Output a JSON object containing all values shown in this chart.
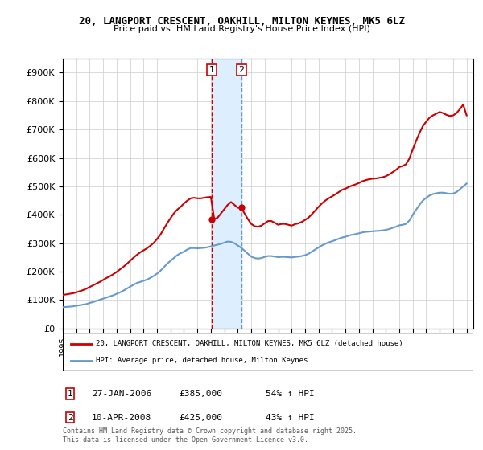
{
  "title": "20, LANGPORT CRESCENT, OAKHILL, MILTON KEYNES, MK5 6LZ",
  "subtitle": "Price paid vs. HM Land Registry's House Price Index (HPI)",
  "ylabel": "",
  "xlabel": "",
  "ylim": [
    0,
    950000
  ],
  "yticks": [
    0,
    100000,
    200000,
    300000,
    400000,
    500000,
    600000,
    700000,
    800000,
    900000
  ],
  "ytick_labels": [
    "£0",
    "£100K",
    "£200K",
    "£300K",
    "£400K",
    "£500K",
    "£600K",
    "£700K",
    "£800K",
    "£900K"
  ],
  "sale1_date_num": 2006.07,
  "sale2_date_num": 2008.27,
  "sale1_price": 385000,
  "sale2_price": 425000,
  "sale1_label": "27-JAN-2006",
  "sale2_label": "10-APR-2008",
  "sale1_hpi": "54% ↑ HPI",
  "sale2_hpi": "43% ↑ HPI",
  "red_color": "#cc0000",
  "blue_color": "#6699cc",
  "shade_color": "#ddeeff",
  "vline_color": "#cc0000",
  "legend1": "20, LANGPORT CRESCENT, OAKHILL, MILTON KEYNES, MK5 6LZ (detached house)",
  "legend2": "HPI: Average price, detached house, Milton Keynes",
  "footer": "Contains HM Land Registry data © Crown copyright and database right 2025.\nThis data is licensed under the Open Government Licence v3.0.",
  "hpi_data": {
    "years": [
      1995.0,
      1995.25,
      1995.5,
      1995.75,
      1996.0,
      1996.25,
      1996.5,
      1996.75,
      1997.0,
      1997.25,
      1997.5,
      1997.75,
      1998.0,
      1998.25,
      1998.5,
      1998.75,
      1999.0,
      1999.25,
      1999.5,
      1999.75,
      2000.0,
      2000.25,
      2000.5,
      2000.75,
      2001.0,
      2001.25,
      2001.5,
      2001.75,
      2002.0,
      2002.25,
      2002.5,
      2002.75,
      2003.0,
      2003.25,
      2003.5,
      2003.75,
      2004.0,
      2004.25,
      2004.5,
      2004.75,
      2005.0,
      2005.25,
      2005.5,
      2005.75,
      2006.0,
      2006.25,
      2006.5,
      2006.75,
      2007.0,
      2007.25,
      2007.5,
      2007.75,
      2008.0,
      2008.25,
      2008.5,
      2008.75,
      2009.0,
      2009.25,
      2009.5,
      2009.75,
      2010.0,
      2010.25,
      2010.5,
      2010.75,
      2011.0,
      2011.25,
      2011.5,
      2011.75,
      2012.0,
      2012.25,
      2012.5,
      2012.75,
      2013.0,
      2013.25,
      2013.5,
      2013.75,
      2014.0,
      2014.25,
      2014.5,
      2014.75,
      2015.0,
      2015.25,
      2015.5,
      2015.75,
      2016.0,
      2016.25,
      2016.5,
      2016.75,
      2017.0,
      2017.25,
      2017.5,
      2017.75,
      2018.0,
      2018.25,
      2018.5,
      2018.75,
      2019.0,
      2019.25,
      2019.5,
      2019.75,
      2020.0,
      2020.25,
      2020.5,
      2020.75,
      2021.0,
      2021.25,
      2021.5,
      2021.75,
      2022.0,
      2022.25,
      2022.5,
      2022.75,
      2023.0,
      2023.25,
      2023.5,
      2023.75,
      2024.0,
      2024.25,
      2024.5,
      2024.75,
      2025.0
    ],
    "values": [
      75000,
      76000,
      77000,
      78000,
      80000,
      82000,
      84000,
      86000,
      90000,
      93000,
      97000,
      101000,
      105000,
      109000,
      113000,
      117000,
      122000,
      127000,
      133000,
      140000,
      147000,
      154000,
      160000,
      164000,
      168000,
      172000,
      178000,
      185000,
      193000,
      203000,
      215000,
      228000,
      238000,
      248000,
      258000,
      265000,
      270000,
      278000,
      283000,
      283000,
      282000,
      283000,
      284000,
      286000,
      289000,
      292000,
      295000,
      298000,
      302000,
      306000,
      305000,
      300000,
      292000,
      284000,
      274000,
      263000,
      253000,
      248000,
      246000,
      248000,
      252000,
      255000,
      255000,
      253000,
      251000,
      252000,
      252000,
      251000,
      250000,
      252000,
      253000,
      255000,
      258000,
      263000,
      270000,
      278000,
      285000,
      292000,
      298000,
      303000,
      307000,
      311000,
      316000,
      320000,
      323000,
      327000,
      330000,
      332000,
      335000,
      338000,
      340000,
      341000,
      342000,
      343000,
      344000,
      345000,
      347000,
      350000,
      354000,
      358000,
      363000,
      365000,
      368000,
      380000,
      400000,
      418000,
      435000,
      450000,
      460000,
      468000,
      473000,
      476000,
      478000,
      478000,
      476000,
      474000,
      475000,
      480000,
      490000,
      500000,
      510000
    ]
  },
  "property_data": {
    "years": [
      1995.0,
      1995.25,
      1995.5,
      1995.75,
      1996.0,
      1996.25,
      1996.5,
      1996.75,
      1997.0,
      1997.25,
      1997.5,
      1997.75,
      1998.0,
      1998.25,
      1998.5,
      1998.75,
      1999.0,
      1999.25,
      1999.5,
      1999.75,
      2000.0,
      2000.25,
      2000.5,
      2000.75,
      2001.0,
      2001.25,
      2001.5,
      2001.75,
      2002.0,
      2002.25,
      2002.5,
      2002.75,
      2003.0,
      2003.25,
      2003.5,
      2003.75,
      2004.0,
      2004.25,
      2004.5,
      2004.75,
      2005.0,
      2005.25,
      2005.5,
      2005.75,
      2006.0,
      2006.25,
      2006.5,
      2006.75,
      2007.0,
      2007.25,
      2007.5,
      2007.75,
      2008.0,
      2008.25,
      2008.5,
      2008.75,
      2009.0,
      2009.25,
      2009.5,
      2009.75,
      2010.0,
      2010.25,
      2010.5,
      2010.75,
      2011.0,
      2011.25,
      2011.5,
      2011.75,
      2012.0,
      2012.25,
      2012.5,
      2012.75,
      2013.0,
      2013.25,
      2013.5,
      2013.75,
      2014.0,
      2014.25,
      2014.5,
      2014.75,
      2015.0,
      2015.25,
      2015.5,
      2015.75,
      2016.0,
      2016.25,
      2016.5,
      2016.75,
      2017.0,
      2017.25,
      2017.5,
      2017.75,
      2018.0,
      2018.25,
      2018.5,
      2018.75,
      2019.0,
      2019.25,
      2019.5,
      2019.75,
      2020.0,
      2020.25,
      2020.5,
      2020.75,
      2021.0,
      2021.25,
      2021.5,
      2021.75,
      2022.0,
      2022.25,
      2022.5,
      2022.75,
      2023.0,
      2023.25,
      2023.5,
      2023.75,
      2024.0,
      2024.25,
      2024.5,
      2024.75,
      2025.0
    ],
    "values": [
      118000,
      120000,
      122000,
      124000,
      127000,
      131000,
      135000,
      140000,
      146000,
      152000,
      158000,
      164000,
      171000,
      178000,
      184000,
      191000,
      199000,
      208000,
      217000,
      227000,
      238000,
      249000,
      259000,
      268000,
      275000,
      282000,
      291000,
      301000,
      315000,
      330000,
      350000,
      370000,
      388000,
      405000,
      418000,
      428000,
      440000,
      450000,
      458000,
      460000,
      458000,
      458000,
      460000,
      462000,
      463000,
      385000,
      390000,
      405000,
      420000,
      435000,
      445000,
      435000,
      425000,
      425000,
      405000,
      385000,
      368000,
      360000,
      358000,
      362000,
      370000,
      378000,
      378000,
      372000,
      365000,
      368000,
      368000,
      365000,
      362000,
      367000,
      370000,
      375000,
      382000,
      390000,
      402000,
      415000,
      428000,
      440000,
      450000,
      458000,
      465000,
      472000,
      480000,
      488000,
      492000,
      498000,
      503000,
      507000,
      512000,
      518000,
      522000,
      525000,
      527000,
      528000,
      530000,
      532000,
      536000,
      542000,
      550000,
      558000,
      568000,
      572000,
      578000,
      598000,
      630000,
      660000,
      688000,
      712000,
      728000,
      742000,
      750000,
      756000,
      762000,
      758000,
      752000,
      748000,
      750000,
      758000,
      772000,
      788000,
      750000
    ]
  }
}
